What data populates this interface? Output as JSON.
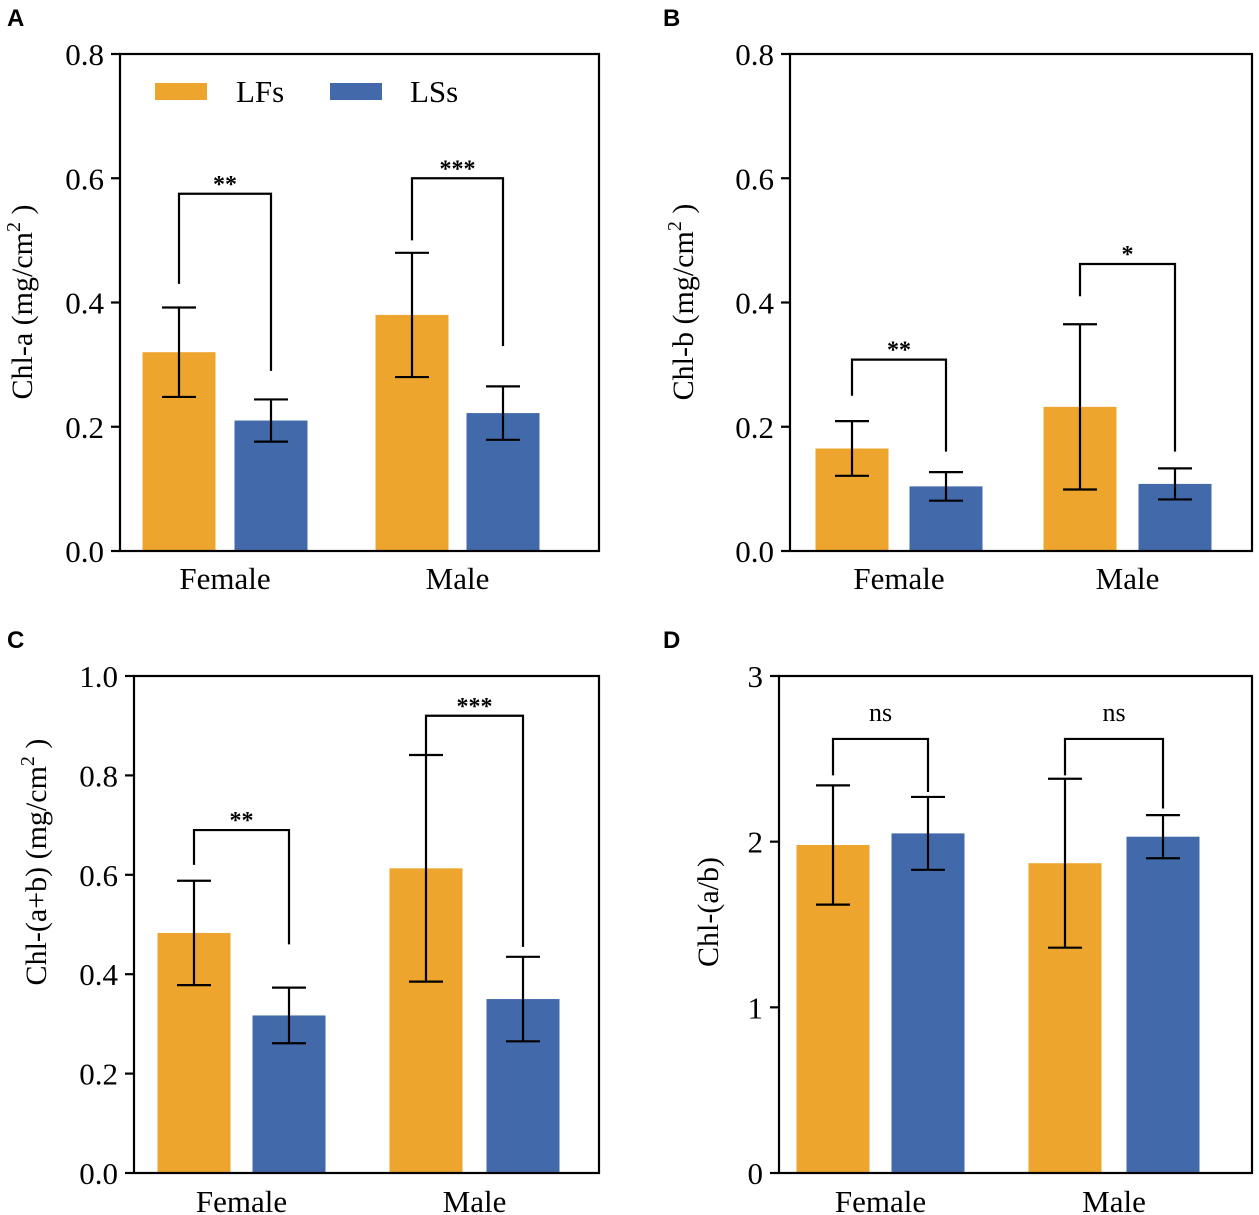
{
  "figure": {
    "colors": {
      "LFs": "#EDA52D",
      "LSs": "#426AAA",
      "axis": "#000000"
    }
  },
  "chart_data": [
    {
      "panel": "A",
      "type": "bar",
      "ylabel_main": "Chl-a (mg/cm",
      "ylabel_sup": "2",
      "ylabel_end": " )",
      "categories": [
        "Female",
        "Male"
      ],
      "ylim": [
        0,
        0.8
      ],
      "yticks": [
        0.0,
        0.2,
        0.4,
        0.6,
        0.8
      ],
      "ytick_labels": [
        "0.0",
        "0.2",
        "0.4",
        "0.6",
        "0.8"
      ],
      "series": [
        {
          "name": "LFs",
          "values": [
            0.32,
            0.38
          ],
          "err": [
            0.072,
            0.1
          ]
        },
        {
          "name": "LSs",
          "values": [
            0.21,
            0.222
          ],
          "err": [
            0.034,
            0.043
          ]
        }
      ],
      "legend": {
        "entries": [
          "LFs",
          "LSs"
        ],
        "position": "top-left"
      },
      "significance": [
        {
          "category": "Female",
          "label": "**",
          "bracket_y": 0.575,
          "left_y": 0.43,
          "right_y": 0.29
        },
        {
          "category": "Male",
          "label": "***",
          "bracket_y": 0.6,
          "left_y": 0.5,
          "right_y": 0.33
        }
      ]
    },
    {
      "panel": "B",
      "type": "bar",
      "ylabel_main": "Chl-b (mg/cm",
      "ylabel_sup": "2",
      "ylabel_end": " )",
      "categories": [
        "Female",
        "Male"
      ],
      "ylim": [
        0,
        0.8
      ],
      "yticks": [
        0.0,
        0.2,
        0.4,
        0.6,
        0.8
      ],
      "ytick_labels": [
        "0.0",
        "0.2",
        "0.4",
        "0.6",
        "0.8"
      ],
      "series": [
        {
          "name": "LFs",
          "values": [
            0.165,
            0.232
          ],
          "err": [
            0.044,
            0.133
          ]
        },
        {
          "name": "LSs",
          "values": [
            0.104,
            0.108
          ],
          "err": [
            0.023,
            0.025
          ]
        }
      ],
      "significance": [
        {
          "category": "Female",
          "label": "**",
          "bracket_y": 0.308,
          "left_y": 0.25,
          "right_y": 0.16
        },
        {
          "category": "Male",
          "label": "*",
          "bracket_y": 0.462,
          "left_y": 0.41,
          "right_y": 0.16
        }
      ]
    },
    {
      "panel": "C",
      "type": "bar",
      "ylabel_main": "Chl-(a+b) (mg/cm",
      "ylabel_sup": "2",
      "ylabel_end": " )",
      "categories": [
        "Female",
        "Male"
      ],
      "ylim": [
        0,
        1.0
      ],
      "yticks": [
        0.0,
        0.2,
        0.4,
        0.6,
        0.8,
        1.0
      ],
      "ytick_labels": [
        "0.0",
        "0.2",
        "0.4",
        "0.6",
        "0.8",
        "1.0"
      ],
      "series": [
        {
          "name": "LFs",
          "values": [
            0.483,
            0.613
          ],
          "err": [
            0.105,
            0.228
          ]
        },
        {
          "name": "LSs",
          "values": [
            0.317,
            0.35
          ],
          "err": [
            0.056,
            0.085
          ]
        }
      ],
      "significance": [
        {
          "category": "Female",
          "label": "**",
          "bracket_y": 0.69,
          "left_y": 0.62,
          "right_y": 0.46
        },
        {
          "category": "Male",
          "label": "***",
          "bracket_y": 0.92,
          "left_y": 0.84,
          "right_y": 0.455
        }
      ]
    },
    {
      "panel": "D",
      "type": "bar",
      "ylabel_main": "Chl-(a/b)",
      "ylabel_sup": "",
      "ylabel_end": "",
      "categories": [
        "Female",
        "Male"
      ],
      "ylim": [
        0,
        3
      ],
      "yticks": [
        0,
        1,
        2,
        3
      ],
      "ytick_labels": [
        "0",
        "1",
        "2",
        "3"
      ],
      "series": [
        {
          "name": "LFs",
          "values": [
            1.98,
            1.87
          ],
          "err": [
            0.36,
            0.51
          ]
        },
        {
          "name": "LSs",
          "values": [
            2.05,
            2.03
          ],
          "err": [
            0.22,
            0.13
          ]
        }
      ],
      "significance": [
        {
          "category": "Female",
          "label": "ns",
          "bracket_y": 2.62,
          "left_y": 2.4,
          "right_y": 2.3
        },
        {
          "category": "Male",
          "label": "ns",
          "bracket_y": 2.62,
          "left_y": 2.4,
          "right_y": 2.2
        }
      ]
    }
  ]
}
